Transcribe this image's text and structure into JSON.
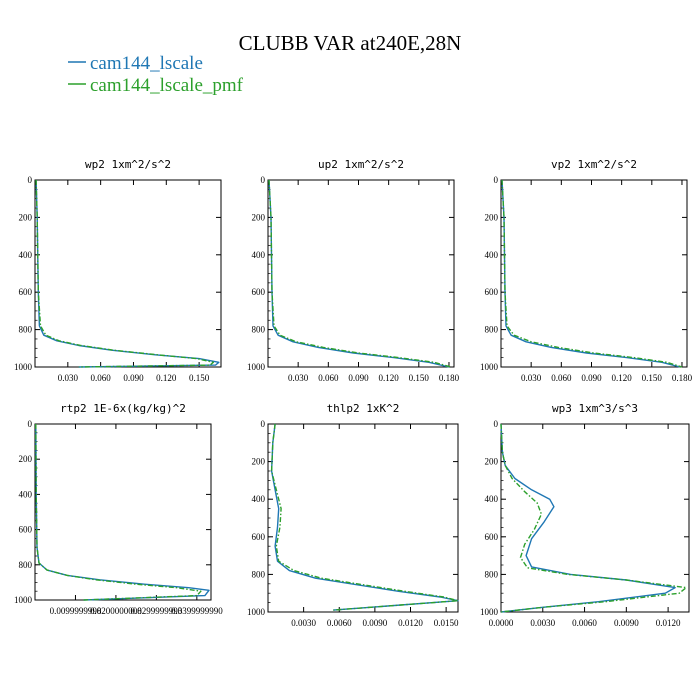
{
  "figure": {
    "title": "CLUBB VAR at240E,28N",
    "legend": [
      {
        "label": "cam144_lscale",
        "color": "#1f77b4"
      },
      {
        "label": "cam144_lscale_pmf",
        "color": "#2ca02c"
      }
    ]
  },
  "chart_data": [
    {
      "type": "line",
      "title": "wp2  1xm^2/s^2",
      "xlim": [
        0,
        0.17
      ],
      "ylim": [
        1000,
        0
      ],
      "xticks": [
        "0.030",
        "0.060",
        "0.090",
        "0.120",
        "0.150"
      ],
      "xtick_values": [
        0.03,
        0.06,
        0.09,
        0.12,
        0.15
      ],
      "yticks": [
        "0",
        "200",
        "400",
        "600",
        "800",
        "1000"
      ],
      "ytick_values": [
        0,
        200,
        400,
        600,
        800,
        1000
      ],
      "series": [
        {
          "color": "#1f77b4",
          "dash": false,
          "x": [
            0.001,
            0.002,
            0.003,
            0.004,
            0.008,
            0.02,
            0.04,
            0.07,
            0.11,
            0.15,
            0.168,
            0.165,
            0.04
          ],
          "y": [
            0,
            200,
            600,
            780,
            830,
            860,
            885,
            910,
            935,
            955,
            975,
            990,
            1000
          ]
        },
        {
          "color": "#2ca02c",
          "dash": true,
          "x": [
            0.001,
            0.002,
            0.003,
            0.005,
            0.01,
            0.022,
            0.042,
            0.072,
            0.112,
            0.148,
            0.163,
            0.16,
            0.04
          ],
          "y": [
            0,
            200,
            600,
            780,
            830,
            860,
            885,
            910,
            935,
            955,
            975,
            990,
            1000
          ]
        }
      ]
    },
    {
      "type": "line",
      "title": "up2  1xm^2/s^2",
      "xlim": [
        0,
        0.185
      ],
      "ylim": [
        1000,
        0
      ],
      "xticks": [
        "0.030",
        "0.060",
        "0.090",
        "0.120",
        "0.150",
        "0.180"
      ],
      "xtick_values": [
        0.03,
        0.06,
        0.09,
        0.12,
        0.15,
        0.18
      ],
      "yticks": [
        "0",
        "200",
        "400",
        "600",
        "800",
        "1000"
      ],
      "ytick_values": [
        0,
        200,
        400,
        600,
        800,
        1000
      ],
      "series": [
        {
          "color": "#1f77b4",
          "dash": false,
          "x": [
            0.001,
            0.003,
            0.004,
            0.005,
            0.01,
            0.025,
            0.05,
            0.085,
            0.125,
            0.16,
            0.18
          ],
          "y": [
            0,
            200,
            600,
            780,
            830,
            865,
            895,
            925,
            950,
            975,
            1000
          ]
        },
        {
          "color": "#2ca02c",
          "dash": true,
          "x": [
            0.001,
            0.003,
            0.004,
            0.006,
            0.012,
            0.028,
            0.055,
            0.09,
            0.13,
            0.165,
            0.182
          ],
          "y": [
            0,
            200,
            600,
            780,
            830,
            865,
            895,
            925,
            950,
            975,
            1000
          ]
        }
      ]
    },
    {
      "type": "line",
      "title": "vp2  1xm^2/s^2",
      "xlim": [
        0,
        0.185
      ],
      "ylim": [
        1000,
        0
      ],
      "xticks": [
        "0.030",
        "0.060",
        "0.090",
        "0.120",
        "0.150",
        "0.180"
      ],
      "xtick_values": [
        0.03,
        0.06,
        0.09,
        0.12,
        0.15,
        0.18
      ],
      "yticks": [
        "0",
        "200",
        "400",
        "600",
        "800",
        "1000"
      ],
      "ytick_values": [
        0,
        200,
        400,
        600,
        800,
        1000
      ],
      "series": [
        {
          "color": "#1f77b4",
          "dash": false,
          "x": [
            0.001,
            0.003,
            0.004,
            0.005,
            0.01,
            0.025,
            0.05,
            0.085,
            0.125,
            0.16,
            0.178
          ],
          "y": [
            0,
            200,
            600,
            780,
            830,
            865,
            895,
            925,
            950,
            975,
            1000
          ]
        },
        {
          "color": "#2ca02c",
          "dash": true,
          "x": [
            0.001,
            0.003,
            0.004,
            0.006,
            0.013,
            0.03,
            0.057,
            0.092,
            0.132,
            0.165,
            0.18
          ],
          "y": [
            0,
            200,
            600,
            780,
            830,
            865,
            895,
            925,
            950,
            975,
            1000
          ]
        }
      ]
    },
    {
      "type": "line",
      "title": "rtp2  1E-6x(kg/kg)^2",
      "xlim": [
        0,
        0.0435
      ],
      "ylim": [
        1000,
        0
      ],
      "xticks": [
        "0.0099999998",
        "0.0200000008",
        "0.0299999993",
        "0.0399999990"
      ],
      "xtick_values": [
        0.01,
        0.02,
        0.03,
        0.04
      ],
      "yticks": [
        "0",
        "200",
        "400",
        "600",
        "800",
        "1000"
      ],
      "ytick_values": [
        0,
        200,
        400,
        600,
        800,
        1000
      ],
      "series": [
        {
          "color": "#1f77b4",
          "dash": false,
          "x": [
            0.0002,
            0.0003,
            0.0005,
            0.001,
            0.003,
            0.008,
            0.016,
            0.027,
            0.038,
            0.043,
            0.042,
            0.012
          ],
          "y": [
            0,
            400,
            700,
            790,
            830,
            860,
            885,
            910,
            930,
            945,
            975,
            1000
          ]
        },
        {
          "color": "#2ca02c",
          "dash": true,
          "x": [
            0.0002,
            0.0003,
            0.0005,
            0.001,
            0.003,
            0.008,
            0.015,
            0.025,
            0.035,
            0.041,
            0.04,
            0.012
          ],
          "y": [
            0,
            400,
            700,
            790,
            830,
            860,
            885,
            910,
            930,
            950,
            975,
            1000
          ]
        }
      ]
    },
    {
      "type": "line",
      "title": "thlp2  1xK^2",
      "xlim": [
        0,
        0.016
      ],
      "ylim": [
        1000,
        0
      ],
      "xticks": [
        "0.0030",
        "0.0060",
        "0.0090",
        "0.0120",
        "0.0150"
      ],
      "xtick_values": [
        0.003,
        0.006,
        0.009,
        0.012,
        0.015
      ],
      "yticks": [
        "0",
        "200",
        "400",
        "600",
        "800",
        "1000"
      ],
      "ytick_values": [
        0,
        200,
        400,
        600,
        800,
        1000
      ],
      "series": [
        {
          "color": "#1f77b4",
          "dash": false,
          "x": [
            0.0006,
            0.0004,
            0.0003,
            0.0006,
            0.0009,
            0.0008,
            0.0006,
            0.0008,
            0.0018,
            0.004,
            0.007,
            0.011,
            0.0145,
            0.016,
            0.0055
          ],
          "y": [
            0,
            100,
            250,
            350,
            450,
            550,
            650,
            730,
            780,
            820,
            850,
            890,
            920,
            940,
            990
          ]
        },
        {
          "color": "#2ca02c",
          "dash": true,
          "x": [
            0.0006,
            0.0004,
            0.0003,
            0.0007,
            0.0011,
            0.001,
            0.0007,
            0.0009,
            0.0022,
            0.0045,
            0.0075,
            0.0115,
            0.0148,
            0.016,
            0.0055
          ],
          "y": [
            0,
            100,
            250,
            350,
            450,
            550,
            650,
            730,
            780,
            820,
            850,
            890,
            920,
            940,
            990
          ]
        }
      ]
    },
    {
      "type": "line",
      "title": "wp3  1xm^3/s^3",
      "xlim": [
        0,
        0.0135
      ],
      "ylim": [
        1000,
        0
      ],
      "xticks": [
        "0.0000",
        "0.0030",
        "0.0060",
        "0.0090",
        "0.0120"
      ],
      "xtick_values": [
        0,
        0.003,
        0.006,
        0.009,
        0.012
      ],
      "yticks": [
        "0",
        "200",
        "400",
        "600",
        "800",
        "1000"
      ],
      "ytick_values": [
        0,
        200,
        400,
        600,
        800,
        1000
      ],
      "series": [
        {
          "color": "#1f77b4",
          "dash": false,
          "x": [
            0.0,
            0.0001,
            0.0003,
            0.001,
            0.0022,
            0.0035,
            0.0038,
            0.0031,
            0.0022,
            0.0018,
            0.0022,
            0.005,
            0.009,
            0.0125,
            0.0118,
            0.007,
            0.003,
            0.0
          ],
          "y": [
            0,
            150,
            220,
            290,
            350,
            400,
            440,
            520,
            610,
            700,
            760,
            800,
            830,
            870,
            900,
            945,
            975,
            1000
          ]
        },
        {
          "color": "#2ca02c",
          "dash": true,
          "x": [
            0.0,
            0.0001,
            0.0003,
            0.0008,
            0.0017,
            0.0026,
            0.0029,
            0.0024,
            0.0017,
            0.0014,
            0.0019,
            0.0048,
            0.009,
            0.0133,
            0.0128,
            0.0075,
            0.003,
            0.0
          ],
          "y": [
            0,
            150,
            220,
            290,
            360,
            420,
            480,
            560,
            640,
            710,
            765,
            800,
            830,
            870,
            900,
            945,
            975,
            1000
          ]
        }
      ]
    }
  ]
}
